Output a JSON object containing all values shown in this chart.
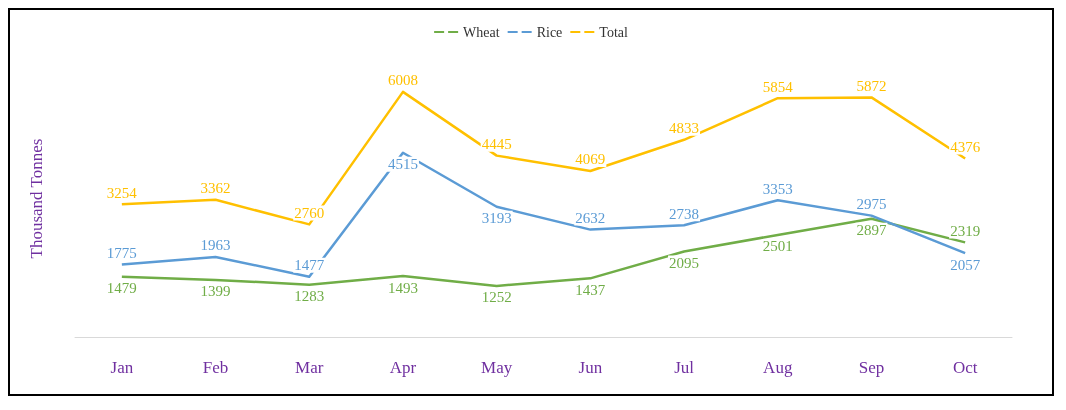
{
  "chart_data": {
    "type": "line",
    "ylabel": "Thousand Tonnes",
    "categories": [
      "Jan",
      "Feb",
      "Mar",
      "Apr",
      "May",
      "Jun",
      "Jul",
      "Aug",
      "Sep",
      "Oct"
    ],
    "series": [
      {
        "name": "Wheat",
        "color": "#70ad47",
        "values": [
          1479,
          1399,
          1283,
          1493,
          1252,
          1437,
          2095,
          2501,
          2897,
          2319
        ]
      },
      {
        "name": "Rice",
        "color": "#5b9bd5",
        "values": [
          1775,
          1963,
          1477,
          4515,
          3193,
          2632,
          2738,
          3353,
          2975,
          2057
        ]
      },
      {
        "name": "Total",
        "color": "#ffc000",
        "values": [
          3254,
          3362,
          2760,
          6008,
          4445,
          4069,
          4833,
          5854,
          5872,
          4376
        ]
      }
    ],
    "data_labels": true,
    "legend": "top",
    "grid": false,
    "marker": "none"
  }
}
